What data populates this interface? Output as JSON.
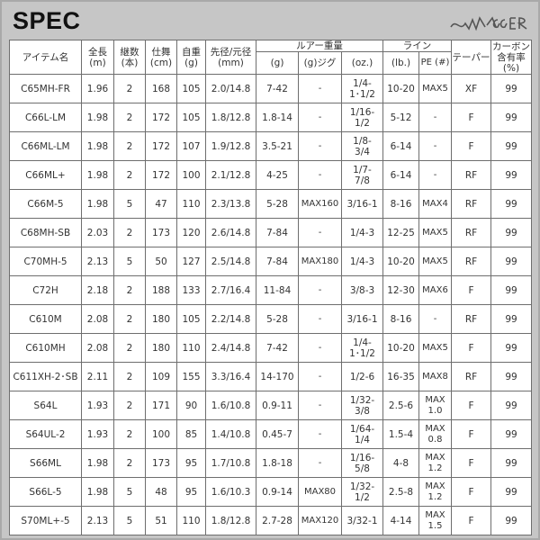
{
  "title": "SPEC",
  "logo": "SWAGGER",
  "headers": {
    "item": "アイテム名",
    "length": "全長\n(m)",
    "pieces": "継数\n(本)",
    "closed": "仕舞\n(cm)",
    "weight": "自重\n(g)",
    "diameter": "先径/元径\n(mm)",
    "lure": "ルアー重量",
    "lure_g": "(g)",
    "lure_jig": "(g)ジグ",
    "lure_oz": "(oz.)",
    "line": "ライン",
    "line_lb": "(lb.)",
    "line_pe": "PE (#)",
    "taper": "テーパー",
    "carbon": "カーボン\n含有率\n(%)"
  },
  "rows": [
    [
      "C65MH-FR",
      "1.96",
      "2",
      "168",
      "105",
      "2.0/14.8",
      "7-42",
      "-",
      "1/4-\n1･1/2",
      "10-20",
      "MAX5",
      "XF",
      "99"
    ],
    [
      "C66L-LM",
      "1.98",
      "2",
      "172",
      "105",
      "1.8/12.8",
      "1.8-14",
      "-",
      "1/16-\n1/2",
      "5-12",
      "-",
      "F",
      "99"
    ],
    [
      "C66ML-LM",
      "1.98",
      "2",
      "172",
      "107",
      "1.9/12.8",
      "3.5-21",
      "-",
      "1/8-\n3/4",
      "6-14",
      "-",
      "F",
      "99"
    ],
    [
      "C66ML+",
      "1.98",
      "2",
      "172",
      "100",
      "2.1/12.8",
      "4-25",
      "-",
      "1/7-\n7/8",
      "6-14",
      "-",
      "RF",
      "99"
    ],
    [
      "C66M-5",
      "1.98",
      "5",
      "47",
      "110",
      "2.3/13.8",
      "5-28",
      "MAX160",
      "3/16-1",
      "8-16",
      "MAX4",
      "RF",
      "99"
    ],
    [
      "C68MH-SB",
      "2.03",
      "2",
      "173",
      "120",
      "2.6/14.8",
      "7-84",
      "-",
      "1/4-3",
      "12-25",
      "MAX5",
      "RF",
      "99"
    ],
    [
      "C70MH-5",
      "2.13",
      "5",
      "50",
      "127",
      "2.5/14.8",
      "7-84",
      "MAX180",
      "1/4-3",
      "10-20",
      "MAX5",
      "RF",
      "99"
    ],
    [
      "C72H",
      "2.18",
      "2",
      "188",
      "133",
      "2.7/16.4",
      "11-84",
      "-",
      "3/8-3",
      "12-30",
      "MAX6",
      "F",
      "99"
    ],
    [
      "C610M",
      "2.08",
      "2",
      "180",
      "105",
      "2.2/14.8",
      "5-28",
      "-",
      "3/16-1",
      "8-16",
      "-",
      "RF",
      "99"
    ],
    [
      "C610MH",
      "2.08",
      "2",
      "180",
      "110",
      "2.4/14.8",
      "7-42",
      "-",
      "1/4-\n1･1/2",
      "10-20",
      "MAX5",
      "F",
      "99"
    ],
    [
      "C611XH-2･SB",
      "2.11",
      "2",
      "109",
      "155",
      "3.3/16.4",
      "14-170",
      "-",
      "1/2-6",
      "16-35",
      "MAX8",
      "RF",
      "99"
    ],
    [
      "S64L",
      "1.93",
      "2",
      "171",
      "90",
      "1.6/10.8",
      "0.9-11",
      "-",
      "1/32-\n3/8",
      "2.5-6",
      "MAX\n1.0",
      "F",
      "99"
    ],
    [
      "S64UL-2",
      "1.93",
      "2",
      "100",
      "85",
      "1.4/10.8",
      "0.45-7",
      "-",
      "1/64-\n1/4",
      "1.5-4",
      "MAX\n0.8",
      "F",
      "99"
    ],
    [
      "S66ML",
      "1.98",
      "2",
      "173",
      "95",
      "1.7/10.8",
      "1.8-18",
      "-",
      "1/16-\n5/8",
      "4-8",
      "MAX\n1.2",
      "F",
      "99"
    ],
    [
      "S66L-5",
      "1.98",
      "5",
      "48",
      "95",
      "1.6/10.3",
      "0.9-14",
      "MAX80",
      "1/32-\n1/2",
      "2.5-8",
      "MAX\n1.2",
      "F",
      "99"
    ],
    [
      "S70ML+-5",
      "2.13",
      "5",
      "51",
      "110",
      "1.8/12.8",
      "2.7-28",
      "MAX120",
      "3/32-1",
      "4-14",
      "MAX\n1.5",
      "F",
      "99"
    ]
  ]
}
